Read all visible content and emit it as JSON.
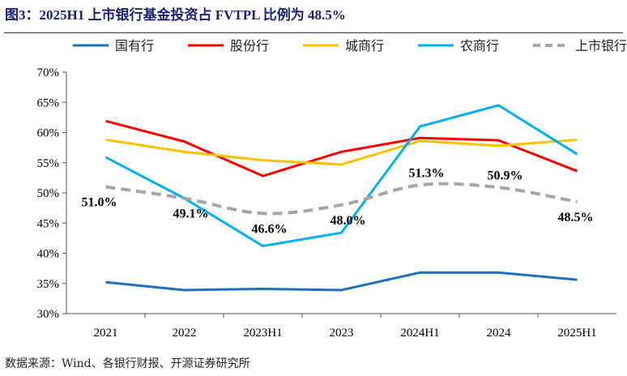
{
  "title": "图3：2025H1 上市银行基金投资占 FVTPL 比例为 48.5%",
  "source": "数据来源：Wind、各银行财报、开源证券研究所",
  "chart_data": {
    "type": "line",
    "categories": [
      "2021",
      "2022",
      "2023H1",
      "2023",
      "2024H1",
      "2024",
      "2025H1"
    ],
    "ylim": [
      30,
      70
    ],
    "yticks": [
      "30%",
      "35%",
      "40%",
      "45%",
      "50%",
      "55%",
      "60%",
      "65%",
      "70%"
    ],
    "legend_position": "top",
    "series": [
      {
        "name": "国有行",
        "color": "#1f6fbf",
        "values": [
          35.2,
          33.9,
          34.1,
          33.9,
          36.8,
          36.8,
          35.6
        ]
      },
      {
        "name": "股份行",
        "color": "#ff0000",
        "values": [
          61.9,
          58.5,
          52.8,
          56.8,
          59.1,
          58.7,
          53.6
        ]
      },
      {
        "name": "城商行",
        "color": "#ffc000",
        "values": [
          58.8,
          56.8,
          55.4,
          54.7,
          58.6,
          57.8,
          58.8
        ]
      },
      {
        "name": "农商行",
        "color": "#00b0f0",
        "values": [
          55.9,
          49.1,
          41.2,
          43.4,
          61.0,
          64.5,
          56.4
        ]
      },
      {
        "name": "上市银行",
        "color": "#a6a6a6",
        "dashed": true,
        "values": [
          51.0,
          49.1,
          46.6,
          48.0,
          51.3,
          50.9,
          48.5
        ],
        "labels": [
          "51.0%",
          "49.1%",
          "46.6%",
          "48.0%",
          "51.3%",
          "50.9%",
          "48.5%"
        ]
      }
    ]
  }
}
